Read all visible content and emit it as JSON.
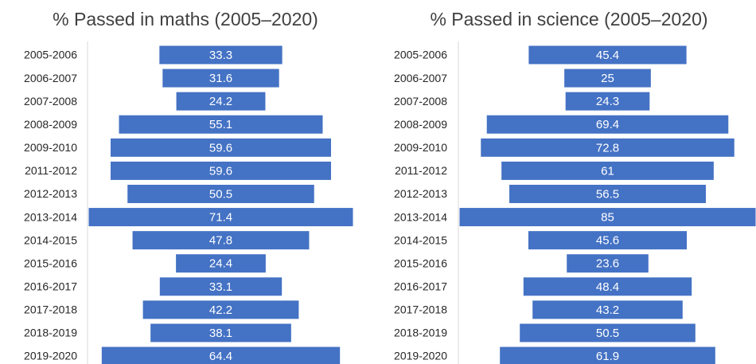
{
  "chart_data": [
    {
      "type": "funnel",
      "title": "% Passed in maths (2005–2020)",
      "color": "#4472c4",
      "categories": [
        "2005-2006",
        "2006-2007",
        "2007-2008",
        "2008-2009",
        "2009-2010",
        "2011-2012",
        "2012-2013",
        "2013-2014",
        "2014-2015",
        "2015-2016",
        "2016-2017",
        "2017-2018",
        "2018-2019",
        "2019-2020"
      ],
      "values": [
        33.3,
        31.6,
        24.2,
        55.1,
        59.6,
        59.6,
        50.5,
        71.4,
        47.8,
        24.4,
        33.1,
        42.2,
        38.1,
        64.4
      ]
    },
    {
      "type": "funnel",
      "title": "% Passed in science (2005–2020)",
      "color": "#4472c4",
      "categories": [
        "2005-2006",
        "2006-2007",
        "2007-2008",
        "2008-2009",
        "2009-2010",
        "2011-2012",
        "2012-2013",
        "2013-2014",
        "2014-2015",
        "2015-2016",
        "2016-2017",
        "2017-2018",
        "2018-2019",
        "2019-2020"
      ],
      "values": [
        45.4,
        25,
        24.3,
        69.4,
        72.8,
        61,
        56.5,
        85,
        45.6,
        23.6,
        48.4,
        43.2,
        50.5,
        61.9
      ]
    }
  ]
}
